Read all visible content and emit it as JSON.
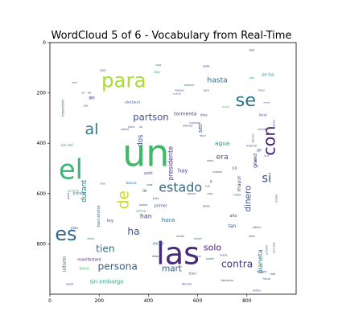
{
  "chart_data": {
    "type": "wordcloud",
    "title": "WordCloud 5 of 6 - Vocabulary from Real-Time",
    "xlim": [
      0,
      1000
    ],
    "ylim": [
      1000,
      0
    ],
    "x_ticks": [
      "0",
      "200",
      "400",
      "600",
      "800"
    ],
    "y_ticks": [
      "0",
      "200",
      "400",
      "600",
      "800"
    ],
    "colormap": "viridis",
    "words": [
      {
        "text": "un",
        "x": 390,
        "y": 440,
        "s": 150,
        "c": "#3fb867",
        "r": 0
      },
      {
        "text": "las",
        "x": 520,
        "y": 840,
        "s": 125,
        "c": "#472a7a",
        "r": 0
      },
      {
        "text": "el",
        "x": 85,
        "y": 505,
        "s": 110,
        "c": "#37b879",
        "r": 0
      },
      {
        "text": "para",
        "x": 300,
        "y": 150,
        "s": 80,
        "c": "#a8db34",
        "r": 0
      },
      {
        "text": "es",
        "x": 65,
        "y": 760,
        "s": 78,
        "c": "#31678e",
        "r": 0
      },
      {
        "text": "se",
        "x": 795,
        "y": 230,
        "s": 74,
        "c": "#2d718e",
        "r": 0
      },
      {
        "text": "con",
        "x": 890,
        "y": 390,
        "s": 68,
        "c": "#482071",
        "r": -90
      },
      {
        "text": "al",
        "x": 170,
        "y": 345,
        "s": 62,
        "c": "#2a788e",
        "r": 0
      },
      {
        "text": "de",
        "x": 300,
        "y": 625,
        "s": 60,
        "c": "#c8e020",
        "r": -90
      },
      {
        "text": "estado",
        "x": 530,
        "y": 575,
        "s": 52,
        "c": "#31688e",
        "r": 0
      },
      {
        "text": "si",
        "x": 880,
        "y": 540,
        "s": 48,
        "c": "#3b518b",
        "r": 0
      },
      {
        "text": "partson",
        "x": 410,
        "y": 295,
        "s": 38,
        "c": "#3e4c8a",
        "r": 0
      },
      {
        "text": "persona",
        "x": 275,
        "y": 890,
        "s": 40,
        "c": "#35608d",
        "r": 0
      },
      {
        "text": "contra",
        "x": 760,
        "y": 880,
        "s": 40,
        "c": "#443983",
        "r": 0
      },
      {
        "text": "ha",
        "x": 340,
        "y": 750,
        "s": 40,
        "c": "#3b528b",
        "r": 0
      },
      {
        "text": "tien",
        "x": 225,
        "y": 820,
        "s": 40,
        "c": "#2e6e8e",
        "r": 0
      },
      {
        "text": "dinero",
        "x": 805,
        "y": 620,
        "s": 34,
        "c": "#3b528b",
        "r": -90
      },
      {
        "text": "hasta",
        "x": 680,
        "y": 150,
        "s": 30,
        "c": "#2f6c8e",
        "r": 0
      },
      {
        "text": "mart",
        "x": 495,
        "y": 900,
        "s": 34,
        "c": "#365c8d",
        "r": 0
      },
      {
        "text": "solo",
        "x": 660,
        "y": 815,
        "s": 36,
        "c": "#481f70",
        "r": 0
      },
      {
        "text": "planeta",
        "x": 855,
        "y": 870,
        "s": 26,
        "c": "#2b748e",
        "r": -90
      },
      {
        "text": "durant",
        "x": 140,
        "y": 590,
        "s": 28,
        "c": "#238a8d",
        "r": -90
      },
      {
        "text": "presidente",
        "x": 490,
        "y": 480,
        "s": 26,
        "c": "#46327e",
        "r": -90
      },
      {
        "text": "dos",
        "x": 370,
        "y": 390,
        "s": 28,
        "c": "#3b528b",
        "r": -90
      },
      {
        "text": "era",
        "x": 700,
        "y": 455,
        "s": 30,
        "c": "#39568c",
        "r": 0
      },
      {
        "text": "agua",
        "x": 700,
        "y": 400,
        "s": 24,
        "c": "#27808e",
        "r": 0
      },
      {
        "text": "ser",
        "x": 610,
        "y": 340,
        "s": 24,
        "c": "#3e4989",
        "r": -90
      },
      {
        "text": "han",
        "x": 390,
        "y": 690,
        "s": 26,
        "c": "#414487",
        "r": 0
      },
      {
        "text": "hora",
        "x": 480,
        "y": 705,
        "s": 24,
        "c": "#2a778e",
        "r": 0
      },
      {
        "text": "hay",
        "x": 540,
        "y": 510,
        "s": 22,
        "c": "#3f4889",
        "r": 0
      },
      {
        "text": "sin embargo",
        "x": 230,
        "y": 950,
        "s": 22,
        "c": "#21a685",
        "r": 0
      },
      {
        "text": "se ha",
        "x": 885,
        "y": 130,
        "s": 18,
        "c": "#20928c",
        "r": 0
      },
      {
        "text": "barcelona",
        "x": 200,
        "y": 690,
        "s": 18,
        "c": "#277f8e",
        "r": -90
      },
      {
        "text": "tan",
        "x": 740,
        "y": 730,
        "s": 20,
        "c": "#3b528b",
        "r": 0
      },
      {
        "text": "inform",
        "x": 60,
        "y": 880,
        "s": 20,
        "c": "#2c728e",
        "r": -90
      },
      {
        "text": "poco",
        "x": 140,
        "y": 900,
        "s": 16,
        "c": "#3dbc74",
        "r": 0
      },
      {
        "text": "mayor",
        "x": 770,
        "y": 560,
        "s": 20,
        "c": "#3e4a89",
        "r": -90
      },
      {
        "text": "grand",
        "x": 835,
        "y": 470,
        "s": 20,
        "c": "#433e85",
        "r": -90
      },
      {
        "text": "le",
        "x": 385,
        "y": 590,
        "s": 20,
        "c": "#26818e",
        "r": 0
      },
      {
        "text": "tormenta",
        "x": 550,
        "y": 285,
        "s": 20,
        "c": "#414487",
        "r": 0
      },
      {
        "text": "york",
        "x": 400,
        "y": 520,
        "s": 16,
        "c": "#3b518b",
        "r": 0
      },
      {
        "text": "primer",
        "x": 450,
        "y": 650,
        "s": 16,
        "c": "#39568c",
        "r": 0
      },
      {
        "text": "social",
        "x": 440,
        "y": 800,
        "s": 16,
        "c": "#2d708e",
        "r": 0
      },
      {
        "text": "manifestant",
        "x": 160,
        "y": 865,
        "s": 16,
        "c": "#472d7b",
        "r": 0
      },
      {
        "text": "ley",
        "x": 245,
        "y": 710,
        "s": 18,
        "c": "#3c4f8a",
        "r": 0
      },
      {
        "text": "alto",
        "x": 745,
        "y": 690,
        "s": 16,
        "c": "#423f85",
        "r": 0
      },
      {
        "text": "ya",
        "x": 750,
        "y": 500,
        "s": 16,
        "c": "#365d8d",
        "r": 0
      },
      {
        "text": "ir",
        "x": 655,
        "y": 555,
        "s": 16,
        "c": "#414287",
        "r": 0
      },
      {
        "text": "air",
        "x": 850,
        "y": 430,
        "s": 16,
        "c": "#3e4a89",
        "r": 0
      },
      {
        "text": "an",
        "x": 170,
        "y": 220,
        "s": 20,
        "c": "#482173",
        "r": 0
      },
      {
        "text": "important",
        "x": 55,
        "y": 260,
        "s": 14,
        "c": "#2d708e",
        "r": -90
      },
      {
        "text": "electoral",
        "x": 335,
        "y": 240,
        "s": 14,
        "c": "#3b528b",
        "r": 0
      },
      {
        "text": "dice",
        "x": 625,
        "y": 290,
        "s": 14,
        "c": "#3e4a89",
        "r": 0
      },
      {
        "text": "local",
        "x": 865,
        "y": 290,
        "s": 14,
        "c": "#3e4989",
        "r": 0
      },
      {
        "text": "popular",
        "x": 120,
        "y": 600,
        "s": 14,
        "c": "#2c738e",
        "r": 0
      },
      {
        "text": "plan",
        "x": 100,
        "y": 740,
        "s": 14,
        "c": "#3e4c8a",
        "r": 0
      },
      {
        "text": "general",
        "x": 95,
        "y": 590,
        "s": 12,
        "c": "#28ae80",
        "r": 0
      },
      {
        "text": "meses",
        "x": 680,
        "y": 515,
        "s": 12,
        "c": "#3b528b",
        "r": 0
      },
      {
        "text": "editor",
        "x": 840,
        "y": 735,
        "s": 12,
        "c": "#3b528b",
        "r": 0
      },
      {
        "text": "banco",
        "x": 330,
        "y": 560,
        "s": 14,
        "c": "#2a788e",
        "r": 0
      },
      {
        "text": "las call",
        "x": 70,
        "y": 410,
        "s": 14,
        "c": "#20a486",
        "r": 0
      },
      {
        "text": "costa",
        "x": 760,
        "y": 605,
        "s": 12,
        "c": "#306a8e",
        "r": 0
      },
      {
        "text": "final",
        "x": 620,
        "y": 370,
        "s": 12,
        "c": "#2d718e",
        "r": 0
      },
      {
        "text": "central",
        "x": 370,
        "y": 670,
        "s": 12,
        "c": "#238a8d",
        "r": 0
      },
      {
        "text": "bien",
        "x": 580,
        "y": 920,
        "s": 14,
        "c": "#2b758e",
        "r": 0
      },
      {
        "text": "fiscal",
        "x": 880,
        "y": 940,
        "s": 12,
        "c": "#31688e",
        "r": 0
      },
      {
        "text": "familia",
        "x": 555,
        "y": 960,
        "s": 12,
        "c": "#3c4f8a",
        "r": 0
      },
      {
        "text": "bolivia",
        "x": 860,
        "y": 910,
        "s": 12,
        "c": "#3f4889",
        "r": 0
      },
      {
        "text": "real",
        "x": 905,
        "y": 920,
        "s": 12,
        "c": "#404688",
        "r": 0
      },
      {
        "text": "fabricante",
        "x": 720,
        "y": 945,
        "s": 10,
        "c": "#3b528b",
        "r": 0
      },
      {
        "text": "report",
        "x": 80,
        "y": 960,
        "s": 10,
        "c": "#443a83",
        "r": 0
      },
      {
        "text": "twitter",
        "x": 840,
        "y": 985,
        "s": 10,
        "c": "#39568c",
        "r": 0
      },
      {
        "text": "sur",
        "x": 880,
        "y": 450,
        "s": 12,
        "c": "#2c738e",
        "r": 0
      },
      {
        "text": "interior",
        "x": 820,
        "y": 410,
        "s": 12,
        "c": "#3d4d8a",
        "r": 0
      },
      {
        "text": "sector",
        "x": 910,
        "y": 320,
        "s": 10,
        "c": "#32648e",
        "r": -90
      },
      {
        "text": "fraude",
        "x": 835,
        "y": 470,
        "s": 10,
        "c": "#2f6b8e",
        "r": -90
      },
      {
        "text": "opinion",
        "x": 825,
        "y": 380,
        "s": 10,
        "c": "#3b528b",
        "r": -90
      },
      {
        "text": "servidor",
        "x": 865,
        "y": 345,
        "s": 10,
        "c": "#3e4a89",
        "r": 0
      },
      {
        "text": "favor",
        "x": 860,
        "y": 190,
        "s": 10,
        "c": "#2b748e",
        "r": 0
      },
      {
        "text": "julio",
        "x": 820,
        "y": 140,
        "s": 10,
        "c": "#1f988b",
        "r": 0
      },
      {
        "text": "music",
        "x": 715,
        "y": 255,
        "s": 10,
        "c": "#44bf70",
        "r": 0
      },
      {
        "text": "maduro",
        "x": 525,
        "y": 190,
        "s": 10,
        "c": "#3b528b",
        "r": 0
      },
      {
        "text": "vista",
        "x": 440,
        "y": 90,
        "s": 10,
        "c": "#2b748e",
        "r": 0
      },
      {
        "text": "day",
        "x": 435,
        "y": 120,
        "s": 14,
        "c": "#3fbc73",
        "r": 0
      },
      {
        "text": "sabe",
        "x": 405,
        "y": 565,
        "s": 10,
        "c": "#31678e",
        "r": 0
      },
      {
        "text": "junto",
        "x": 430,
        "y": 620,
        "s": 10,
        "c": "#3b528b",
        "r": 0
      },
      {
        "text": "deben",
        "x": 430,
        "y": 850,
        "s": 10,
        "c": "#3e4a89",
        "r": 0
      },
      {
        "text": "record",
        "x": 600,
        "y": 780,
        "s": 10,
        "c": "#2e6f8e",
        "r": 0
      },
      {
        "text": "mesa",
        "x": 650,
        "y": 470,
        "s": 10,
        "c": "#2f6c8e",
        "r": 0
      },
      {
        "text": "grave",
        "x": 75,
        "y": 610,
        "s": 10,
        "c": "#3b528b",
        "r": -90
      },
      {
        "text": "llama",
        "x": 165,
        "y": 780,
        "s": 10,
        "c": "#2a788e",
        "r": 0
      },
      {
        "text": "lune",
        "x": 215,
        "y": 560,
        "s": 10,
        "c": "#3e4a89",
        "r": 0
      },
      {
        "text": "usar",
        "x": 145,
        "y": 250,
        "s": 10,
        "c": "#3e4a89",
        "r": 0
      },
      {
        "text": "sin",
        "x": 135,
        "y": 200,
        "s": 10,
        "c": "#3b528b",
        "r": 0
      },
      {
        "text": "via",
        "x": 160,
        "y": 200,
        "s": 10,
        "c": "#3b528b",
        "r": 0
      },
      {
        "text": "ambient",
        "x": 565,
        "y": 170,
        "s": 10,
        "c": "#2d718e",
        "r": 0
      },
      {
        "text": "combust",
        "x": 515,
        "y": 205,
        "s": 8,
        "c": "#3b528b",
        "r": 0
      },
      {
        "text": "digit",
        "x": 820,
        "y": 30,
        "s": 10,
        "c": "#3e4a89",
        "r": 0
      },
      {
        "text": "ballet",
        "x": 635,
        "y": 95,
        "s": 10,
        "c": "#3b528b",
        "r": 0
      },
      {
        "text": "puede",
        "x": 705,
        "y": 845,
        "s": 10,
        "c": "#3b528b",
        "r": 0
      },
      {
        "text": "pueblo",
        "x": 650,
        "y": 860,
        "s": 10,
        "c": "#2f6c8e",
        "r": 0
      },
      {
        "text": "sexual",
        "x": 575,
        "y": 600,
        "s": 10,
        "c": "#3e4a89",
        "r": 0
      },
      {
        "text": "plane",
        "x": 600,
        "y": 850,
        "s": 10,
        "c": "#3b528b",
        "r": 0
      },
      {
        "text": "ralph",
        "x": 820,
        "y": 770,
        "s": 10,
        "c": "#3b528b",
        "r": 0
      },
      {
        "text": "boston",
        "x": 380,
        "y": 645,
        "s": 10,
        "c": "#3b528b",
        "r": 0
      },
      {
        "text": "nacion",
        "x": 530,
        "y": 770,
        "s": 10,
        "c": "#3b528b",
        "r": 0
      },
      {
        "text": "cosa",
        "x": 650,
        "y": 600,
        "s": 10,
        "c": "#3b528b",
        "r": 0
      },
      {
        "text": "cual",
        "x": 640,
        "y": 570,
        "s": 10,
        "c": "#3b528b",
        "r": 0
      },
      {
        "text": "pero",
        "x": 635,
        "y": 190,
        "s": 10,
        "c": "#3b528b",
        "r": 0
      },
      {
        "text": "client",
        "x": 330,
        "y": 335,
        "s": 10,
        "c": "#3b528b",
        "r": 0
      },
      {
        "text": "deport",
        "x": 305,
        "y": 345,
        "s": 10,
        "c": "#3b528b",
        "r": 0
      },
      {
        "text": "sin",
        "x": 370,
        "y": 335,
        "s": 10,
        "c": "#3b528b",
        "r": 0
      },
      {
        "text": "ademas",
        "x": 560,
        "y": 330,
        "s": 10,
        "c": "#3b528b",
        "r": 0
      },
      {
        "text": "inversion",
        "x": 590,
        "y": 320,
        "s": 10,
        "c": "#3b528b",
        "r": 0
      },
      {
        "text": "primero",
        "x": 880,
        "y": 825,
        "s": 10,
        "c": "#3b528b",
        "r": -90
      },
      {
        "text": "principal",
        "x": 910,
        "y": 815,
        "s": 10,
        "c": "#3b528b",
        "r": -90
      },
      {
        "text": "ciudad",
        "x": 920,
        "y": 620,
        "s": 10,
        "c": "#3b528b",
        "r": -90
      },
      {
        "text": "desde",
        "x": 635,
        "y": 650,
        "s": 10,
        "c": "#3b528b",
        "r": 0
      },
      {
        "text": "regio",
        "x": 215,
        "y": 110,
        "s": 10,
        "c": "#3b528b",
        "r": 0
      },
      {
        "text": "nuevo",
        "x": 100,
        "y": 160,
        "s": 8,
        "c": "#3b528b",
        "r": 0
      },
      {
        "text": "mover",
        "x": 880,
        "y": 240,
        "s": 8,
        "c": "#3b528b",
        "r": 0
      }
    ]
  }
}
